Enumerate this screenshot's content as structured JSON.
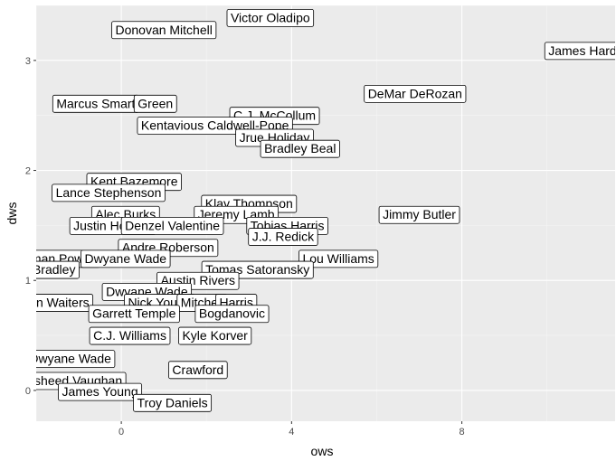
{
  "chart_data": {
    "type": "scatter",
    "xlabel": "ows",
    "ylabel": "dws",
    "xlim": [
      -2.0,
      11.6
    ],
    "ylim": [
      -0.28,
      3.5
    ],
    "x_ticks": [
      0,
      4,
      8
    ],
    "y_ticks": [
      0,
      1,
      2,
      3
    ],
    "grid": true,
    "colors": {
      "panel": "#ebebeb",
      "grid_major": "#ffffff",
      "grid_minor": "#f5f5f5",
      "label_fill": "#ffffff",
      "label_border": "#000000"
    },
    "points": [
      {
        "label": "Victor Oladipo",
        "x": 3.5,
        "y": 3.39
      },
      {
        "label": "Donovan Mitchell",
        "x": 1.0,
        "y": 3.28
      },
      {
        "label": "James Harden",
        "x": 11.0,
        "y": 3.09
      },
      {
        "label": "DeMar DeRozan",
        "x": 6.9,
        "y": 2.7
      },
      {
        "label": "Marcus Smart",
        "x": -0.6,
        "y": 2.61
      },
      {
        "label": "Green",
        "x": 0.8,
        "y": 2.61
      },
      {
        "label": "C.J. McCollum",
        "x": 3.6,
        "y": 2.5
      },
      {
        "label": "Kentavious Caldwell-Pope",
        "x": 2.2,
        "y": 2.41
      },
      {
        "label": "Jrue Holiday",
        "x": 3.6,
        "y": 2.3
      },
      {
        "label": "Bradley Beal",
        "x": 4.2,
        "y": 2.2
      },
      {
        "label": "Kent Bazemore",
        "x": 0.3,
        "y": 1.9
      },
      {
        "label": "Lance Stephenson",
        "x": -0.3,
        "y": 1.8
      },
      {
        "label": "Klay Thompson",
        "x": 3.0,
        "y": 1.7
      },
      {
        "label": "Alec Burks",
        "x": 0.1,
        "y": 1.6
      },
      {
        "label": "Jeremy Lamb",
        "x": 2.7,
        "y": 1.6
      },
      {
        "label": "Jimmy Butler",
        "x": 7.0,
        "y": 1.6
      },
      {
        "label": "Justin Holiday",
        "x": -0.2,
        "y": 1.5
      },
      {
        "label": "Denzel Valentine",
        "x": 1.2,
        "y": 1.5
      },
      {
        "label": "Tobias Harris",
        "x": 3.9,
        "y": 1.5
      },
      {
        "label": "J.J. Redick",
        "x": 3.8,
        "y": 1.4
      },
      {
        "label": "Andre Roberson",
        "x": 1.1,
        "y": 1.3
      },
      {
        "label": "Norman Powell",
        "x": -1.6,
        "y": 1.2
      },
      {
        "label": "Dwyane Wade",
        "x": 0.1,
        "y": 1.2
      },
      {
        "label": "Lou Williams",
        "x": 5.1,
        "y": 1.2
      },
      {
        "label": "Avery Bradley",
        "x": -2.0,
        "y": 1.1
      },
      {
        "label": "Tomas Satoransky",
        "x": 3.2,
        "y": 1.1
      },
      {
        "label": "Austin Rivers",
        "x": 1.8,
        "y": 1.0
      },
      {
        "label": "Dwyane Wade",
        "x": 0.6,
        "y": 0.9
      },
      {
        "label": "Dion Waiters",
        "x": -1.6,
        "y": 0.8
      },
      {
        "label": "Nick Young",
        "x": 0.9,
        "y": 0.8
      },
      {
        "label": "Mitchell",
        "x": 1.9,
        "y": 0.8
      },
      {
        "label": "Harris",
        "x": 2.7,
        "y": 0.8
      },
      {
        "label": "Garrett Temple",
        "x": 0.3,
        "y": 0.7
      },
      {
        "label": "Bogdanovic",
        "x": 2.6,
        "y": 0.7
      },
      {
        "label": "C.J. Williams",
        "x": 0.2,
        "y": 0.5
      },
      {
        "label": "Kyle Korver",
        "x": 2.2,
        "y": 0.5
      },
      {
        "label": "Dwyane Wade",
        "x": -1.2,
        "y": 0.29
      },
      {
        "label": "Crawford",
        "x": 1.8,
        "y": 0.19
      },
      {
        "label": "Rasheed Vaughan",
        "x": -1.2,
        "y": 0.09
      },
      {
        "label": "James Young",
        "x": -0.5,
        "y": -0.01
      },
      {
        "label": "Troy Daniels",
        "x": 1.2,
        "y": -0.11
      }
    ]
  }
}
